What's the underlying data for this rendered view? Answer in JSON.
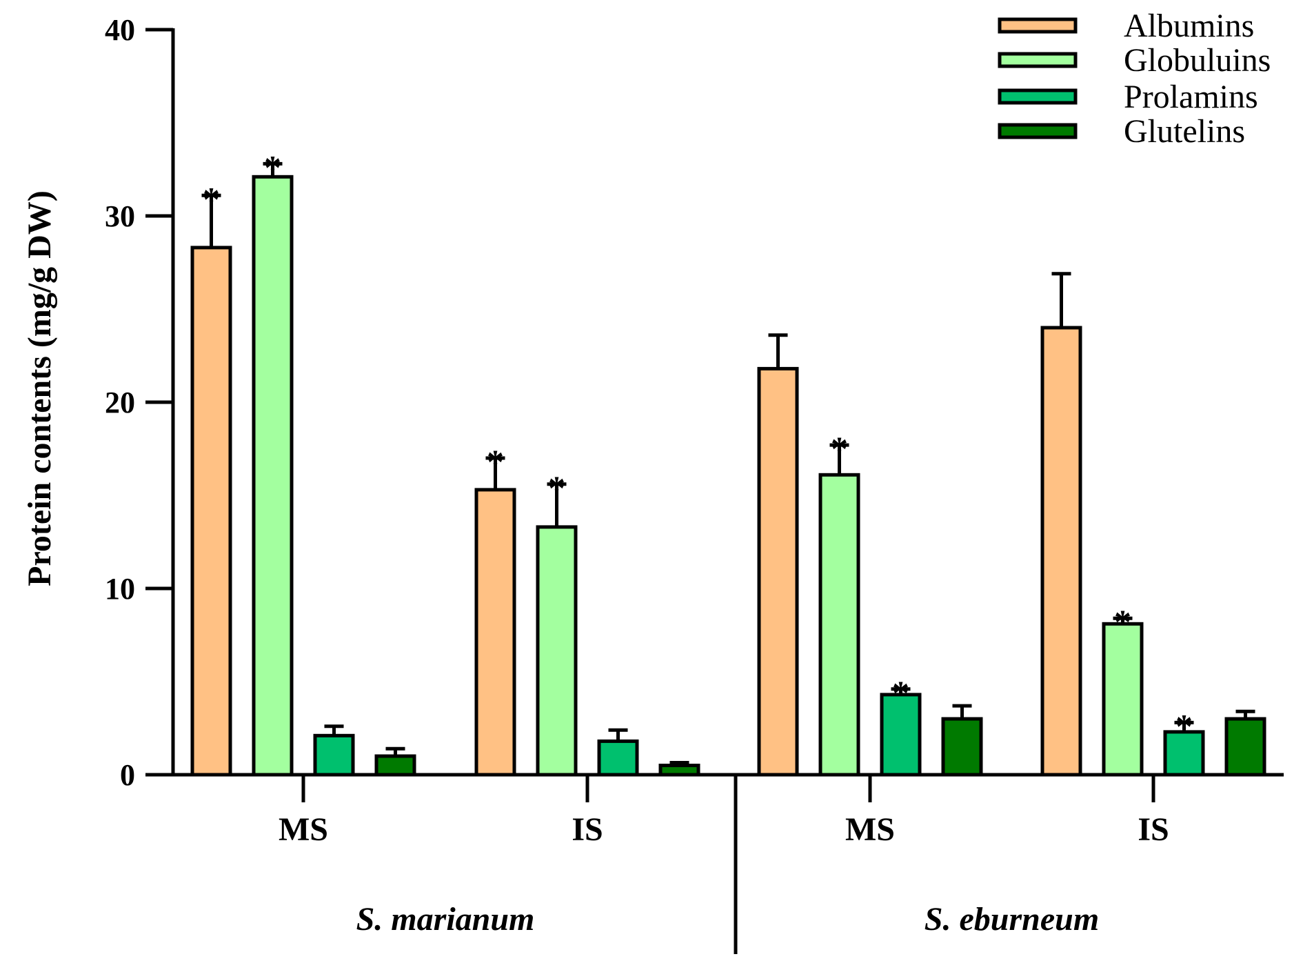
{
  "chart_data": {
    "type": "bar",
    "title": "",
    "xlabel": "",
    "ylabel": "Protein contents (mg/g DW)",
    "ylim": [
      0,
      40
    ],
    "yticks": [
      0,
      10,
      20,
      30,
      40
    ],
    "categories": [
      "MS",
      "IS",
      "MS",
      "IS"
    ],
    "groups": [
      {
        "label": "S. marianum",
        "categories": [
          0,
          1
        ]
      },
      {
        "label": "S. eburneum",
        "categories": [
          2,
          3
        ]
      }
    ],
    "series": [
      {
        "name": "Albumins",
        "color": "#FFC184",
        "values": [
          28.3,
          15.3,
          21.8,
          24.0
        ],
        "errors": [
          2.8,
          1.7,
          1.8,
          2.9
        ],
        "significant": [
          true,
          true,
          false,
          false
        ]
      },
      {
        "name": "Globuluins",
        "color": "#A3FF9F",
        "values": [
          32.1,
          13.3,
          16.1,
          8.1
        ],
        "errors": [
          0.7,
          2.3,
          1.6,
          0.3
        ],
        "significant": [
          true,
          true,
          true,
          true
        ]
      },
      {
        "name": "Prolamins",
        "color": "#00C06E",
        "values": [
          2.1,
          1.8,
          4.3,
          2.3
        ],
        "errors": [
          0.5,
          0.6,
          0.3,
          0.5
        ],
        "significant": [
          false,
          false,
          true,
          true
        ]
      },
      {
        "name": "Glutelins",
        "color": "#007A00",
        "values": [
          1.0,
          0.5,
          3.0,
          3.0
        ],
        "errors": [
          0.4,
          0.15,
          0.7,
          0.4
        ],
        "significant": [
          false,
          false,
          false,
          false
        ]
      }
    ],
    "significance_marker": "*",
    "legend_position": "top-right"
  }
}
